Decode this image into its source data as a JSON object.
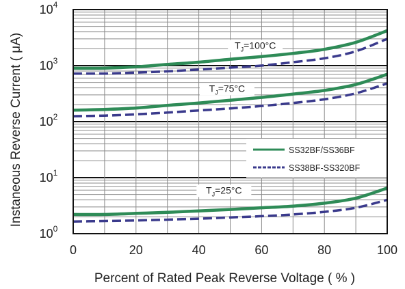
{
  "chart_data": {
    "type": "line",
    "title": "",
    "xlabel": "Percent of Rated Peak Reverse Voltage ( % )",
    "ylabel": "Instaneous Reverse Current ( μA)",
    "xlim": [
      0,
      100
    ],
    "ylim": [
      1,
      10000
    ],
    "y_scale": "log",
    "grid": true,
    "x_ticks": [
      "0",
      "20",
      "40",
      "60",
      "80",
      "100"
    ],
    "y_ticks": [
      {
        "base": "10",
        "exp": "0",
        "value": 1
      },
      {
        "base": "10",
        "exp": "1",
        "value": 10
      },
      {
        "base": "10",
        "exp": "2",
        "value": 100
      },
      {
        "base": "10",
        "exp": "3",
        "value": 1000
      },
      {
        "base": "10",
        "exp": "4",
        "value": 10000
      }
    ],
    "legend": {
      "placement": "center-right",
      "entries": [
        {
          "label": "SS32BF/SS36BF",
          "color": "#2e8b57",
          "style": "solid"
        },
        {
          "label": "SS38BF-SS320BF",
          "color": "#3a3a8c",
          "style": "dashed"
        }
      ]
    },
    "annotations": [
      {
        "main": "T",
        "sub": "J",
        "rest": "=100°C",
        "x": 58,
        "y": 2000
      },
      {
        "main": "T",
        "sub": "J",
        "rest": "=75°C",
        "x": 49,
        "y": 340
      },
      {
        "main": "T",
        "sub": "J",
        "rest": "=25°C",
        "x": 48,
        "y": 5.2
      }
    ],
    "series": [
      {
        "name": "SS32BF/SS36BF",
        "group": "TJ=100°C",
        "color": "#2e8b57",
        "style": "solid",
        "x": [
          0,
          10,
          20,
          30,
          40,
          50,
          60,
          70,
          80,
          90,
          100
        ],
        "y": [
          900,
          900,
          950,
          1050,
          1150,
          1300,
          1450,
          1650,
          1950,
          2600,
          4200
        ]
      },
      {
        "name": "SS38BF-SS320BF",
        "group": "TJ=100°C",
        "color": "#3a3a8c",
        "style": "dashed",
        "x": [
          0,
          10,
          20,
          30,
          40,
          50,
          60,
          70,
          80,
          90,
          100
        ],
        "y": [
          720,
          720,
          750,
          790,
          850,
          920,
          1000,
          1150,
          1350,
          1800,
          3000
        ]
      },
      {
        "name": "SS32BF/SS36BF",
        "group": "TJ=75°C",
        "color": "#2e8b57",
        "style": "solid",
        "x": [
          0,
          10,
          20,
          30,
          40,
          50,
          60,
          70,
          80,
          90,
          100
        ],
        "y": [
          160,
          165,
          175,
          195,
          215,
          240,
          270,
          310,
          360,
          460,
          700
        ]
      },
      {
        "name": "SS38BF-SS320BF",
        "group": "TJ=75°C",
        "color": "#3a3a8c",
        "style": "dashed",
        "x": [
          0,
          10,
          20,
          30,
          40,
          50,
          60,
          70,
          80,
          90,
          100
        ],
        "y": [
          125,
          128,
          135,
          145,
          158,
          172,
          190,
          215,
          250,
          320,
          480
        ]
      },
      {
        "name": "SS32BF/SS36BF",
        "group": "TJ=25°C",
        "color": "#2e8b57",
        "style": "solid",
        "x": [
          0,
          10,
          20,
          30,
          40,
          50,
          60,
          70,
          80,
          90,
          100
        ],
        "y": [
          2.2,
          2.2,
          2.3,
          2.4,
          2.55,
          2.7,
          2.9,
          3.1,
          3.5,
          4.3,
          6.5
        ]
      },
      {
        "name": "SS38BF-SS320BF",
        "group": "TJ=25°C",
        "color": "#3a3a8c",
        "style": "dashed",
        "x": [
          0,
          10,
          20,
          30,
          40,
          50,
          60,
          70,
          80,
          90,
          100
        ],
        "y": [
          1.65,
          1.68,
          1.72,
          1.78,
          1.85,
          1.95,
          2.05,
          2.2,
          2.45,
          2.9,
          4.0
        ]
      }
    ]
  }
}
